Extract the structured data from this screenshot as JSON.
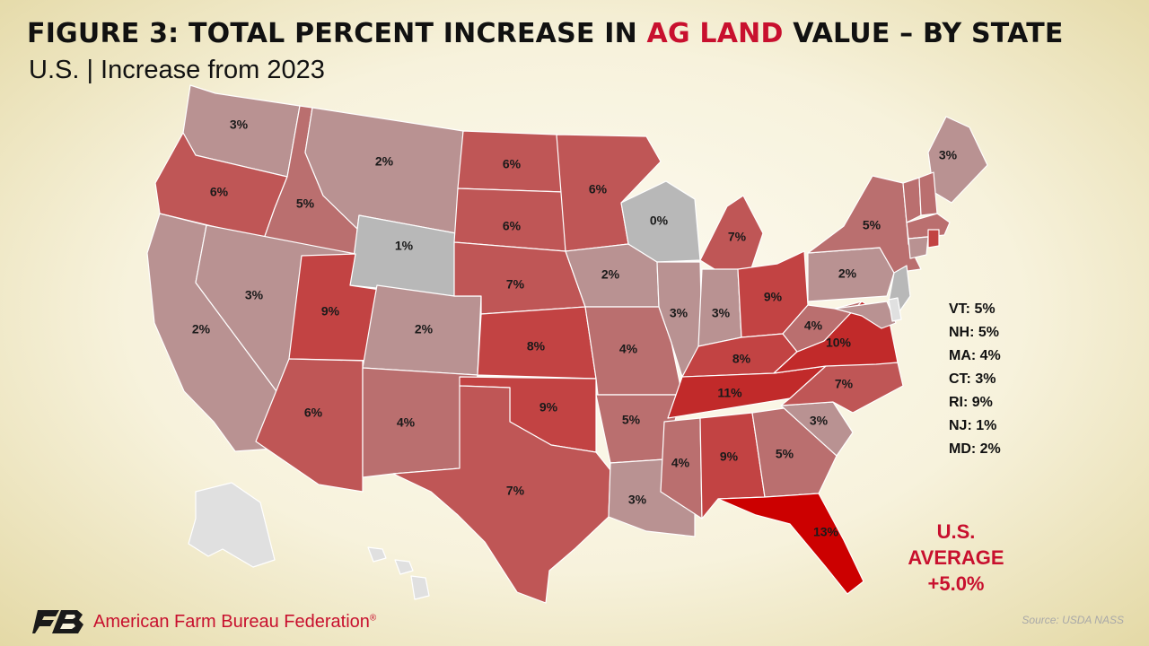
{
  "title": {
    "prefix": "FIGURE 3: TOTAL PERCENT INCREASE IN ",
    "highlight": "AG LAND",
    "suffix": " VALUE – BY STATE"
  },
  "subtitle": "U.S. | Increase from 2023",
  "colors": {
    "accent": "#c8102e",
    "tier_0_1": "#b8b8b8",
    "tier_2_3": "#b99292",
    "tier_4_5": "#ba6f6f",
    "tier_6_7": "#bf5656",
    "tier_8_9": "#c24343",
    "tier_10_11": "#c12a2a",
    "tier_12_plus": "#cc0000",
    "no_data": "#e0e0e0"
  },
  "states": [
    {
      "abbr": "WA",
      "value": 3,
      "label": "3%"
    },
    {
      "abbr": "OR",
      "value": 6,
      "label": "6%"
    },
    {
      "abbr": "CA",
      "value": 2,
      "label": "2%"
    },
    {
      "abbr": "ID",
      "value": 5,
      "label": "5%"
    },
    {
      "abbr": "NV",
      "value": 3,
      "label": "3%"
    },
    {
      "abbr": "MT",
      "value": 2,
      "label": "2%"
    },
    {
      "abbr": "WY",
      "value": 1,
      "label": "1%"
    },
    {
      "abbr": "UT",
      "value": 9,
      "label": "9%"
    },
    {
      "abbr": "AZ",
      "value": 6,
      "label": "6%"
    },
    {
      "abbr": "CO",
      "value": 2,
      "label": "2%"
    },
    {
      "abbr": "NM",
      "value": 4,
      "label": "4%"
    },
    {
      "abbr": "ND",
      "value": 6,
      "label": "6%"
    },
    {
      "abbr": "SD",
      "value": 6,
      "label": "6%"
    },
    {
      "abbr": "NE",
      "value": 7,
      "label": "7%"
    },
    {
      "abbr": "KS",
      "value": 8,
      "label": "8%"
    },
    {
      "abbr": "OK",
      "value": 9,
      "label": "9%"
    },
    {
      "abbr": "TX",
      "value": 7,
      "label": "7%"
    },
    {
      "abbr": "MN",
      "value": 6,
      "label": "6%"
    },
    {
      "abbr": "IA",
      "value": 2,
      "label": "2%"
    },
    {
      "abbr": "MO",
      "value": 4,
      "label": "4%"
    },
    {
      "abbr": "AR",
      "value": 5,
      "label": "5%"
    },
    {
      "abbr": "LA",
      "value": 3,
      "label": "3%"
    },
    {
      "abbr": "WI",
      "value": 0,
      "label": "0%"
    },
    {
      "abbr": "IL",
      "value": 3,
      "label": "3%"
    },
    {
      "abbr": "MI",
      "value": 7,
      "label": "7%"
    },
    {
      "abbr": "IN",
      "value": 3,
      "label": "3%"
    },
    {
      "abbr": "OH",
      "value": 9,
      "label": "9%"
    },
    {
      "abbr": "KY",
      "value": 8,
      "label": "8%"
    },
    {
      "abbr": "TN",
      "value": 11,
      "label": "11%"
    },
    {
      "abbr": "MS",
      "value": 4,
      "label": "4%"
    },
    {
      "abbr": "AL",
      "value": 9,
      "label": "9%"
    },
    {
      "abbr": "GA",
      "value": 5,
      "label": "5%"
    },
    {
      "abbr": "FL",
      "value": 13,
      "label": "13%"
    },
    {
      "abbr": "SC",
      "value": 3,
      "label": "3%"
    },
    {
      "abbr": "NC",
      "value": 7,
      "label": "7%"
    },
    {
      "abbr": "VA",
      "value": 10,
      "label": "10%"
    },
    {
      "abbr": "WV",
      "value": 4,
      "label": "4%"
    },
    {
      "abbr": "PA",
      "value": 2,
      "label": "2%"
    },
    {
      "abbr": "NY",
      "value": 5,
      "label": "5%"
    },
    {
      "abbr": "ME",
      "value": 3,
      "label": "3%"
    },
    {
      "abbr": "VT",
      "value": 5,
      "label": ""
    },
    {
      "abbr": "NH",
      "value": 5,
      "label": ""
    },
    {
      "abbr": "MA",
      "value": 4,
      "label": ""
    },
    {
      "abbr": "CT",
      "value": 3,
      "label": ""
    },
    {
      "abbr": "RI",
      "value": 9,
      "label": ""
    },
    {
      "abbr": "NJ",
      "value": 1,
      "label": ""
    },
    {
      "abbr": "MD",
      "value": 2,
      "label": ""
    },
    {
      "abbr": "DE",
      "value": null,
      "label": ""
    },
    {
      "abbr": "AK",
      "value": null,
      "label": ""
    },
    {
      "abbr": "HI",
      "value": null,
      "label": ""
    }
  ],
  "small_states": [
    "VT: 5%",
    "NH: 5%",
    "MA: 4%",
    "CT: 3%",
    "RI: 9%",
    "NJ: 1%",
    "MD: 2%"
  ],
  "us_average": {
    "line1": "U.S.",
    "line2": "AVERAGE",
    "line3": "+5.0%"
  },
  "footer": {
    "logo_icon": "afbf-logo-icon",
    "organization": "American Farm Bureau Federation",
    "registered_mark": "®",
    "source": "Source: USDA NASS"
  }
}
